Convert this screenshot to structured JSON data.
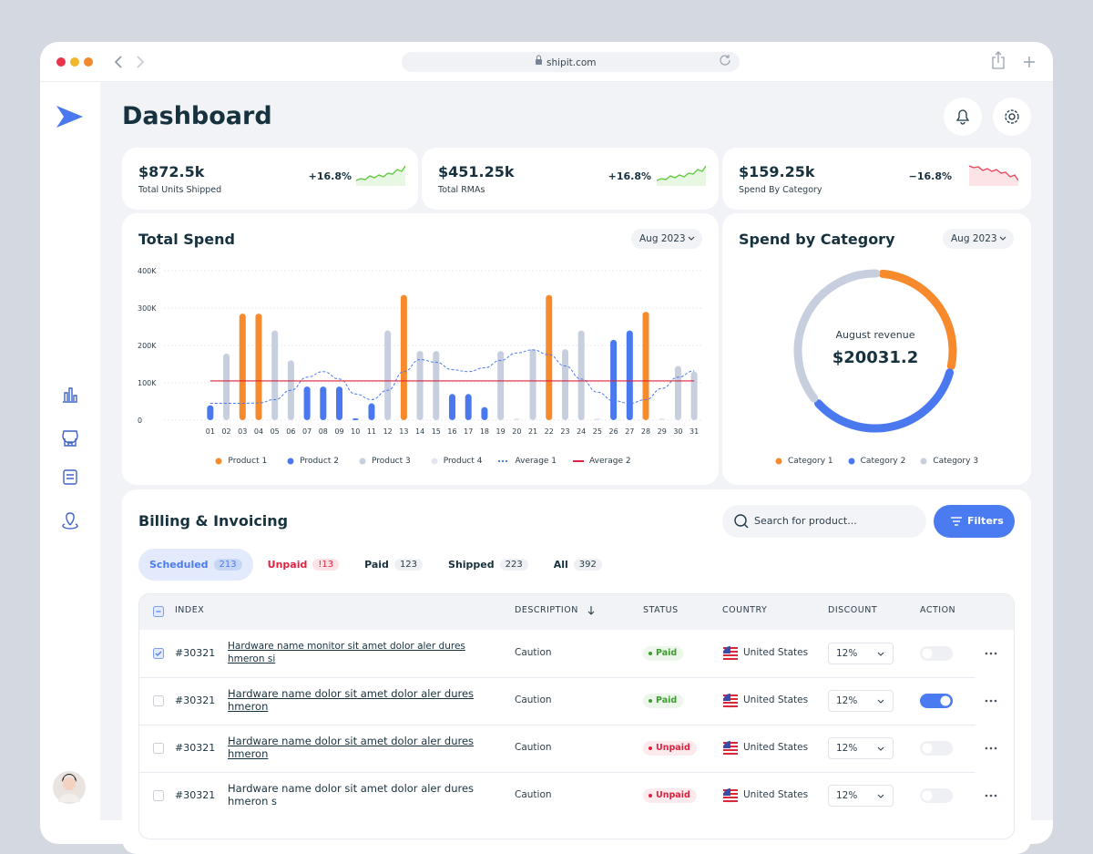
{
  "browser": {
    "url": "shipit.com"
  },
  "header": {
    "title": "Dashboard"
  },
  "stats": [
    {
      "value": "$872.5k",
      "label": "Total Units Shipped",
      "change": "+16.8%",
      "trend": "up"
    },
    {
      "value": "$451.25k",
      "label": "Total RMAs",
      "change": "+16.8%",
      "trend": "up"
    },
    {
      "value": "$159.25k",
      "label": "Spend By Category",
      "change": "−16.8%",
      "trend": "down"
    }
  ],
  "chart_data": [
    {
      "type": "bar",
      "title": "Total Spend",
      "period": "Aug 2023",
      "categories": [
        "01",
        "02",
        "03",
        "04",
        "05",
        "06",
        "07",
        "08",
        "09",
        "10",
        "11",
        "12",
        "13",
        "14",
        "15",
        "16",
        "17",
        "18",
        "19",
        "20",
        "21",
        "22",
        "23",
        "24",
        "25",
        "26",
        "27",
        "28",
        "29",
        "30",
        "31"
      ],
      "ylim": [
        0,
        400000
      ],
      "yticks": [
        0,
        {
          "value": 100000,
          "label": "100K"
        },
        {
          "value": 200000,
          "label": "200K"
        },
        {
          "value": 300000,
          "label": "300K"
        },
        {
          "value": 400000,
          "label": "400K"
        }
      ],
      "grid": true,
      "series": [
        {
          "name": "Product 1",
          "type": "bar",
          "color": "#f78a2c",
          "values": [
            null,
            null,
            285000,
            285000,
            null,
            null,
            null,
            null,
            null,
            null,
            null,
            null,
            335000,
            null,
            null,
            null,
            null,
            null,
            null,
            null,
            null,
            335000,
            null,
            null,
            null,
            null,
            null,
            290000,
            null,
            null,
            null
          ]
        },
        {
          "name": "Product 2",
          "type": "bar",
          "color": "#4a78ef",
          "values": [
            40000,
            null,
            null,
            null,
            null,
            null,
            90000,
            90000,
            90000,
            3000,
            45000,
            null,
            null,
            null,
            null,
            70000,
            70000,
            35000,
            null,
            null,
            null,
            null,
            null,
            null,
            null,
            215000,
            240000,
            null,
            null,
            null,
            null
          ]
        },
        {
          "name": "Product 3",
          "type": "bar",
          "color": "#c7cfdf",
          "values": [
            null,
            178000,
            null,
            null,
            240000,
            160000,
            null,
            null,
            null,
            null,
            null,
            240000,
            null,
            185000,
            185000,
            null,
            null,
            null,
            185000,
            null,
            190000,
            null,
            190000,
            240000,
            null,
            null,
            null,
            null,
            null,
            145000,
            130000
          ]
        },
        {
          "name": "Product 4",
          "type": "bar",
          "color": "#e3e6ec",
          "values": [
            null,
            null,
            null,
            null,
            null,
            null,
            null,
            null,
            null,
            null,
            null,
            null,
            null,
            null,
            null,
            null,
            null,
            null,
            null,
            5000,
            null,
            null,
            null,
            null,
            5000,
            null,
            null,
            null,
            5000,
            null,
            null
          ]
        },
        {
          "name": "Average 1",
          "type": "line",
          "dashed": true,
          "color": "#4a78ef",
          "values": [
            45000,
            45000,
            45000,
            46000,
            55000,
            80000,
            115000,
            130000,
            110000,
            70000,
            55000,
            80000,
            130000,
            162000,
            155000,
            135000,
            130000,
            140000,
            160000,
            180000,
            188000,
            175000,
            145000,
            110000,
            75000,
            52000,
            45000,
            55000,
            85000,
            115000,
            132000
          ]
        },
        {
          "name": "Average 2",
          "type": "line",
          "dashed": false,
          "color": "#e0223f",
          "values": [
            105000,
            105000,
            105000,
            105000,
            105000,
            105000,
            105000,
            105000,
            105000,
            105000,
            105000,
            105000,
            105000,
            105000,
            105000,
            105000,
            105000,
            105000,
            105000,
            105000,
            105000,
            105000,
            105000,
            105000,
            105000,
            105000,
            105000,
            105000,
            105000,
            105000,
            105000
          ]
        }
      ]
    },
    {
      "type": "pie",
      "donut": true,
      "title": "Spend by Category",
      "period": "Aug 2023",
      "center_label": "August revenue",
      "center_value": "$20031.2",
      "categories": [
        "Category 1",
        "Category 2",
        "Category 3"
      ],
      "values": [
        28,
        35,
        37
      ],
      "colors": [
        "#f78a2c",
        "#4a78ef",
        "#c7cfdf"
      ]
    }
  ],
  "billing": {
    "title": "Billing & Invoicing",
    "search_placeholder": "Search for product...",
    "filter_label": "Filters",
    "tabs": [
      {
        "label": "Scheduled",
        "count": 213,
        "active": true
      },
      {
        "label": "Unpaid",
        "count": "!13",
        "color": "#e0223f"
      },
      {
        "label": "Paid",
        "count": 123
      },
      {
        "label": "Shipped",
        "count": 223
      },
      {
        "label": "All",
        "count": 392
      }
    ],
    "columns": [
      "INDEX",
      "DESCRIPTION",
      "STATUS",
      "COUNTRY",
      "DISCOUNT",
      "ACTION"
    ],
    "rows": [
      {
        "index": "#30321",
        "description": "Hardware name monitor sit amet dolor aler dures hmeron si",
        "category": "Caution",
        "status": "Paid",
        "status_color": "#3a9f2a",
        "country": "United States",
        "discount": "12%",
        "selected": true,
        "enabled": false,
        "linked": true
      },
      {
        "index": "#30321",
        "description": "Hardware name dolor sit amet dolor aler dures hmeron",
        "category": "Caution",
        "status": "Paid",
        "status_color": "#3a9f2a",
        "country": "United States",
        "discount": "12%",
        "selected": false,
        "enabled": true,
        "linked": true
      },
      {
        "index": "#30321",
        "description": "Hardware name dolor sit amet dolor aler dures hmeron",
        "category": "Caution",
        "status": "Unpaid",
        "status_color": "#e0223f",
        "country": "United States",
        "discount": "12%",
        "selected": false,
        "enabled": false,
        "linked": true
      },
      {
        "index": "#30321",
        "description": "Hardware name dolor sit amet dolor aler dures hmeron s",
        "category": "Caution",
        "status": "Unpaid",
        "status_color": "#e0223f",
        "country": "United States",
        "discount": "12%",
        "selected": false,
        "enabled": false,
        "linked": false
      }
    ]
  }
}
